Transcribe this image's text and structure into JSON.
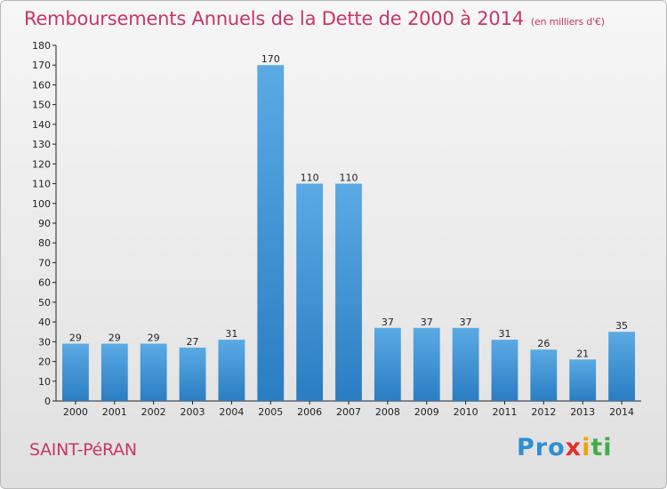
{
  "header": {
    "title": "Remboursements Annuels de la Dette de 2000 à 2014",
    "unit": "(en milliers d'€)"
  },
  "footer": {
    "commune": "SAINT-PéRAN",
    "logo": {
      "p1": "Pro",
      "p2": "x",
      "p3": "i",
      "p4": "ti"
    }
  },
  "colors": {
    "title": "#c8356b",
    "bar_top": "#5aaae4",
    "bar_bottom": "#2a7dc2"
  },
  "chart_data": {
    "type": "bar",
    "title": "Remboursements Annuels de la Dette de 2000 à 2014",
    "subtitle": "(en milliers d'€)",
    "categories": [
      "2000",
      "2001",
      "2002",
      "2003",
      "2004",
      "2005",
      "2006",
      "2007",
      "2008",
      "2009",
      "2010",
      "2011",
      "2012",
      "2013",
      "2014"
    ],
    "values": [
      29,
      29,
      29,
      27,
      31,
      170,
      110,
      110,
      37,
      37,
      37,
      31,
      26,
      21,
      35
    ],
    "ylim": [
      0,
      180
    ],
    "yticks": [
      0,
      10,
      20,
      30,
      40,
      50,
      60,
      70,
      80,
      90,
      100,
      110,
      120,
      130,
      140,
      150,
      160,
      170,
      180
    ],
    "grid": false,
    "legend": "none"
  }
}
